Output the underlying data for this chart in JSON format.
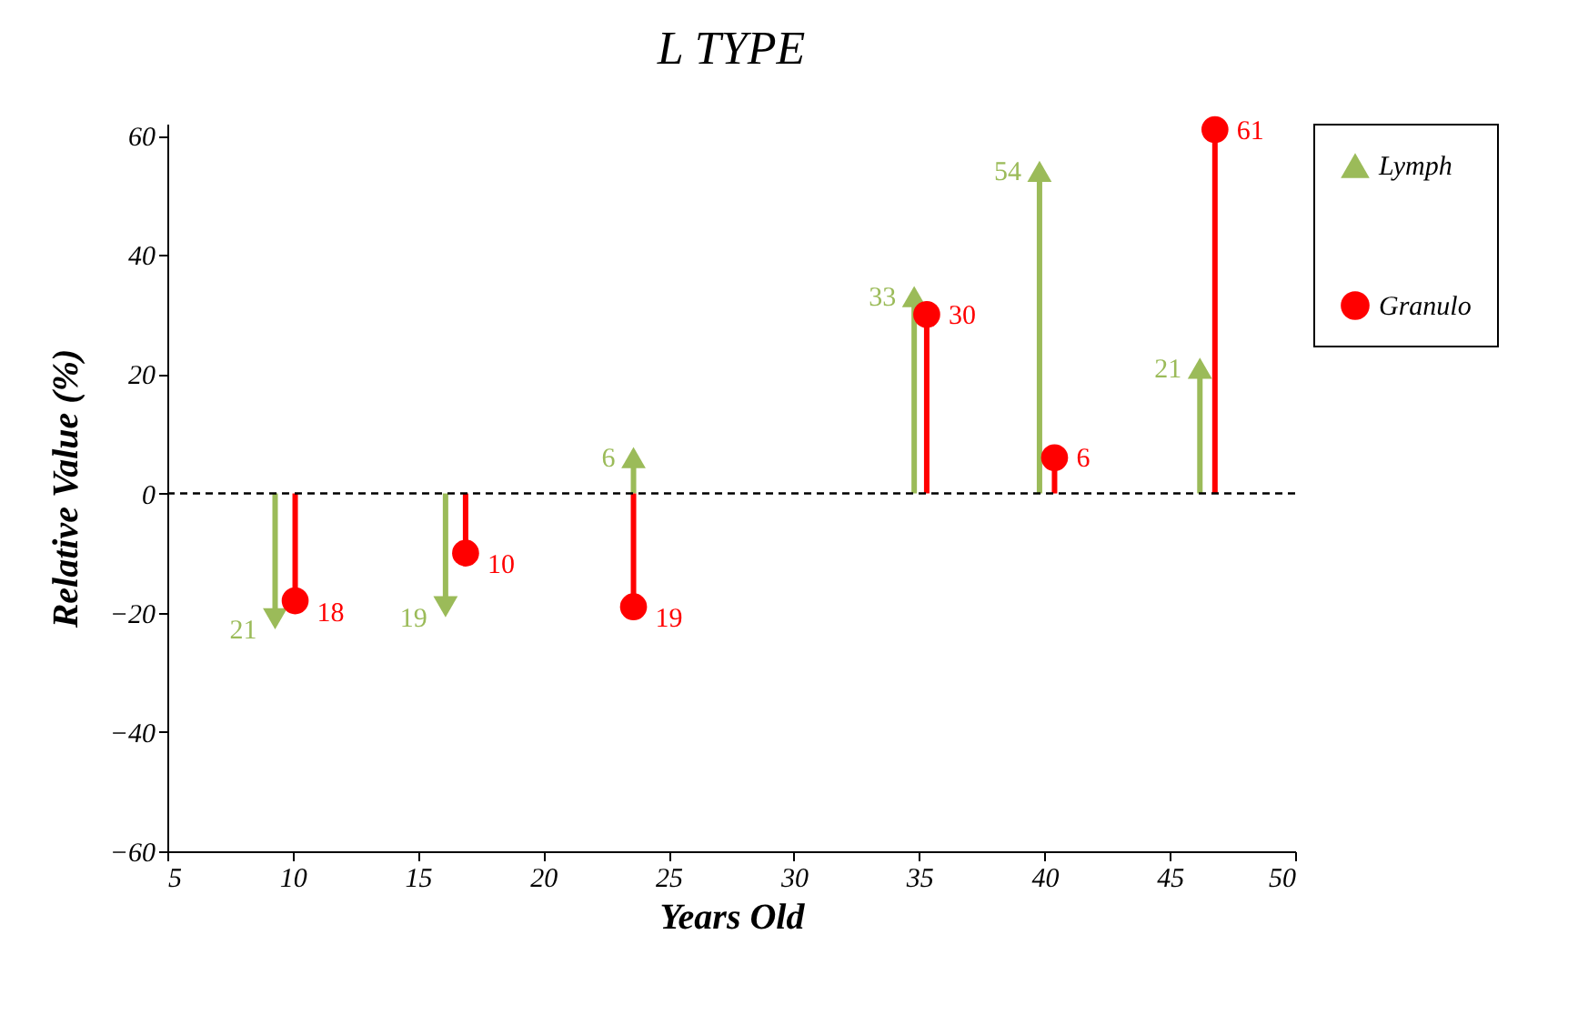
{
  "chart_data": {
    "type": "lollipop",
    "title": "L TYPE",
    "xlabel": "Years Old",
    "ylabel": "Relative Value    (%)",
    "xlim": [
      5,
      50
    ],
    "xticks": [
      5,
      10,
      15,
      20,
      25,
      30,
      35,
      40,
      45,
      50
    ],
    "ylim": [
      -60,
      62
    ],
    "yticks": [
      -60,
      -40,
      -20,
      0,
      20,
      40,
      60
    ],
    "grid": false,
    "legend": "right",
    "ref_lines": [
      {
        "axis": "y",
        "value": 0,
        "color": "#000000",
        "line_style": "dashed"
      }
    ],
    "annotations": [
      {
        "text": "21",
        "x": 9.3,
        "y": -21
      },
      {
        "text": "19",
        "x": 16.1,
        "y": -19
      },
      {
        "text": "18",
        "x": 10.1,
        "y": -18
      },
      {
        "text": "10",
        "x": 16.9,
        "y": -10
      },
      {
        "text": "19",
        "x": 23.6,
        "y": -19
      }
    ],
    "series": [
      {
        "name": "Lymph",
        "marker": "triangle",
        "color": "#9bbb59",
        "x": [
          9.3,
          16.1,
          23.6,
          34.8,
          39.8,
          46.2
        ],
        "values": [
          -21,
          -19,
          6,
          33,
          54,
          21
        ],
        "value_labels": [
          null,
          null,
          "6",
          "33",
          "54",
          "21"
        ]
      },
      {
        "name": "Granulo",
        "marker": "circle",
        "color": "#ff0000",
        "x": [
          10.1,
          16.9,
          23.6,
          35.3,
          40.4,
          46.8
        ],
        "values": [
          -18,
          -10,
          -19,
          30,
          6,
          61
        ],
        "value_labels": [
          null,
          null,
          null,
          "30",
          "6",
          "61"
        ]
      }
    ]
  }
}
